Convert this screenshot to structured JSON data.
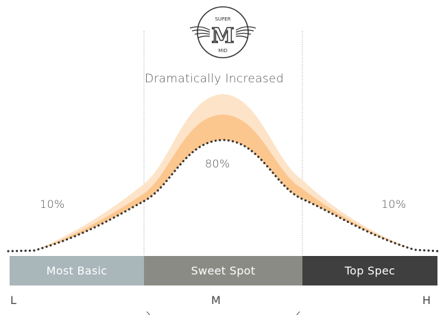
{
  "logo": {
    "text_top": "SUPER",
    "text_mid": "M",
    "text_bottom": "MID"
  },
  "headline": "Dramatically Increased",
  "percentages": {
    "left": "10%",
    "center": "80%",
    "right": "10%"
  },
  "segments": [
    {
      "label": "Most Basic",
      "color": "#a9b6ba"
    },
    {
      "label": "Sweet Spot",
      "color": "#8b8b85"
    },
    {
      "label": "Top Spec",
      "color": "#3f3f3f"
    }
  ],
  "axis": {
    "low": "L",
    "mid": "M",
    "high": "H"
  },
  "colors": {
    "band_outer": "#fde3c8",
    "band_inner": "#fbc78f",
    "dots": "#333333",
    "guide": "#888888"
  }
}
